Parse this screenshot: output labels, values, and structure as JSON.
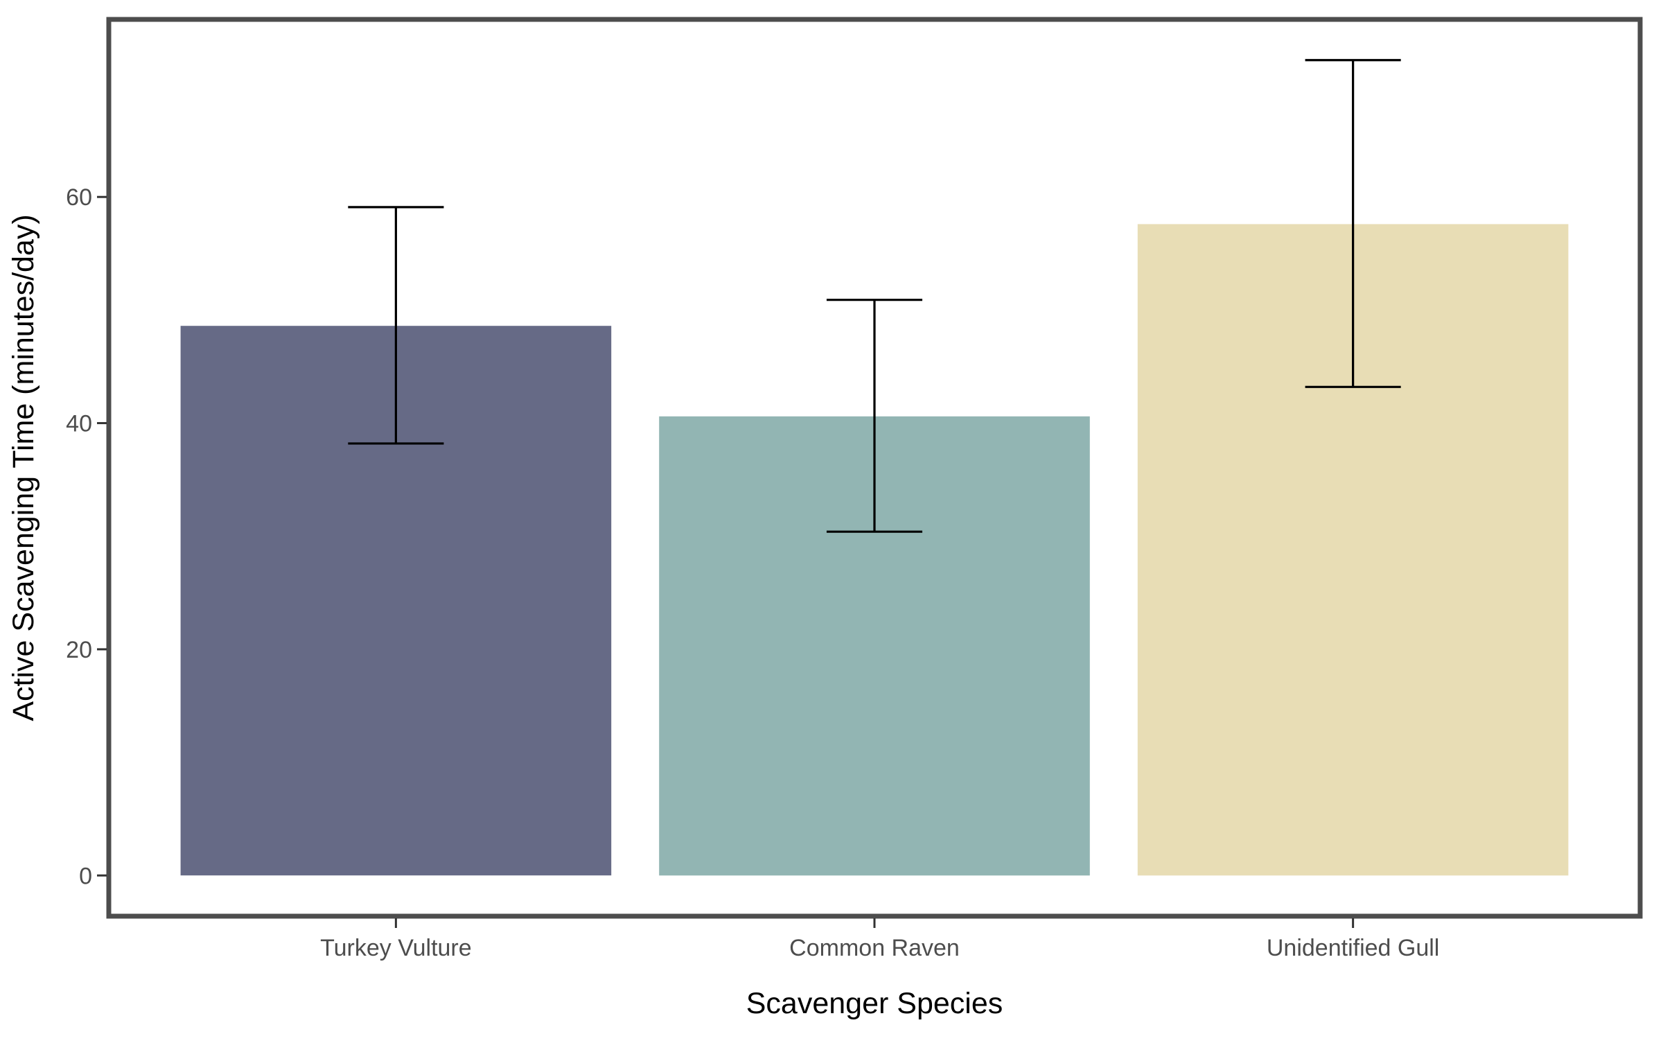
{
  "chart_data": {
    "type": "bar",
    "title": "",
    "xlabel": "Scavenger Species",
    "ylabel": "Active Scavenging Time (minutes/day)",
    "categories": [
      "Turkey Vulture",
      "Common Raven",
      "Unidentified Gull"
    ],
    "values": [
      48.6,
      40.6,
      57.6
    ],
    "error_low": [
      38.2,
      30.4,
      43.2
    ],
    "error_high": [
      59.1,
      50.9,
      72.1
    ],
    "colors": [
      "#666a86",
      "#92b5b3",
      "#e8ddb5"
    ],
    "yticks": [
      0,
      20,
      40,
      60
    ],
    "ytick_labels": [
      "0",
      "20",
      "40",
      "60"
    ],
    "ylim": [
      -3.6,
      75.7
    ],
    "grid": false,
    "legend": "none",
    "frame_color": "#4d4d4d"
  }
}
